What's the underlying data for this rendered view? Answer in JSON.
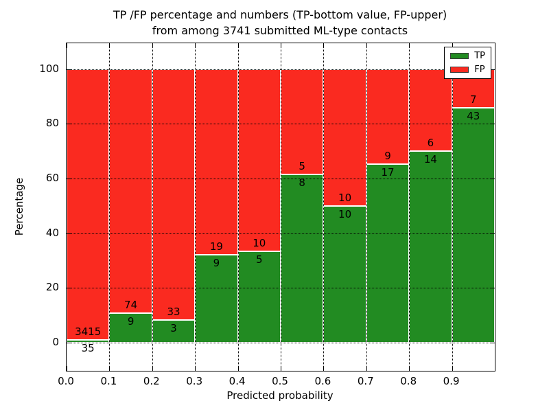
{
  "chart_data": {
    "type": "bar",
    "stacked": true,
    "title_line1": "TP /FP percentage and numbers (TP-bottom value, FP-upper)",
    "title_line2": "from among 3741 submitted ML-type contacts",
    "xlabel": "Predicted probability",
    "ylabel": "Percentage",
    "x_tick_labels": [
      "0.0",
      "0.1",
      "0.2",
      "0.3",
      "0.4",
      "0.5",
      "0.6",
      "0.7",
      "0.8",
      "0.9"
    ],
    "x_tick_values": [
      0.0,
      0.1,
      0.2,
      0.3,
      0.4,
      0.5,
      0.6,
      0.7,
      0.8,
      0.9
    ],
    "y_tick_labels": [
      "0",
      "20",
      "40",
      "60",
      "80",
      "100"
    ],
    "y_tick_values": [
      0,
      20,
      40,
      60,
      80,
      100
    ],
    "xlim": [
      0.0,
      1.0
    ],
    "ylim_visible": [
      -10.3,
      109.5
    ],
    "bin_width": 0.1,
    "categories": [
      "0.0-0.1",
      "0.1-0.2",
      "0.2-0.3",
      "0.3-0.4",
      "0.4-0.5",
      "0.5-0.6",
      "0.6-0.7",
      "0.7-0.8",
      "0.8-0.9",
      "0.9-1.0"
    ],
    "series": [
      {
        "name": "TP",
        "counts": [
          35,
          9,
          3,
          9,
          5,
          8,
          10,
          17,
          14,
          43
        ]
      },
      {
        "name": "FP",
        "counts": [
          3415,
          74,
          33,
          19,
          10,
          5,
          10,
          9,
          6,
          7
        ]
      }
    ],
    "tp_percent": [
      1.01,
      10.84,
      8.33,
      32.14,
      33.33,
      61.54,
      50.0,
      65.38,
      70.0,
      86.0
    ],
    "grid": "dotted, at every x tick and y tick",
    "legend": {
      "position": "upper right",
      "items": [
        {
          "label": "TP",
          "color": "#228b22"
        },
        {
          "label": "FP",
          "color": "#fa2a20"
        }
      ]
    },
    "colors": {
      "tp": "#228b22",
      "fp": "#fa2a20",
      "bar_edge": "#ffffff",
      "text": "#000000",
      "background": "#ffffff"
    }
  }
}
